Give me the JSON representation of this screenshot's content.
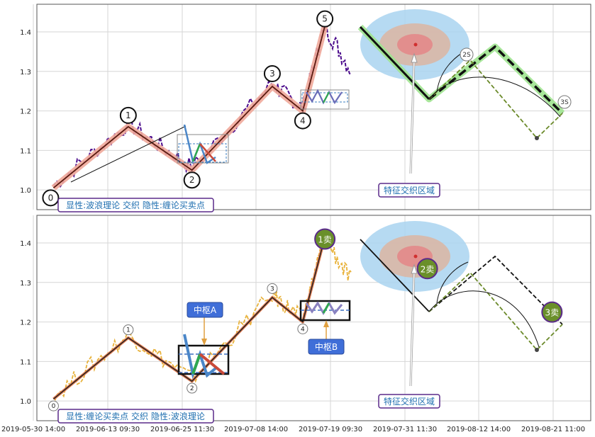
{
  "chart_data": [
    {
      "type": "line",
      "panel": "top",
      "x_tick_labels": [
        "2019-05-30 14:00",
        "2019-06-13 09:30",
        "2019-06-25 11:30",
        "2019-07-08 14:00",
        "2019-07-19 09:30",
        "2019-07-31 11:30",
        "2019-08-12 14:00",
        "2019-08-21 11:00"
      ],
      "y_ticks": [
        1.0,
        1.1,
        1.2,
        1.3,
        1.4
      ],
      "y_tick_labels": [
        "1.0",
        "1.1",
        "1.2",
        "1.3",
        "1.4"
      ],
      "ylim": [
        0.95,
        1.47
      ],
      "xlim": [
        0,
        100
      ],
      "grid": true,
      "wave_points": [
        {
          "x": 3.0,
          "y": 1.005,
          "label": "0"
        },
        {
          "x": 16.5,
          "y": 1.16,
          "label": "1"
        },
        {
          "x": 28.0,
          "y": 1.05,
          "label": "2"
        },
        {
          "x": 42.5,
          "y": 1.262,
          "label": "3"
        },
        {
          "x": 48.0,
          "y": 1.2,
          "label": "4"
        },
        {
          "x": 52.0,
          "y": 1.415,
          "label": "5"
        }
      ],
      "projection": {
        "line": [
          [
            61.5,
            1.22
          ],
          [
            75.5,
            1.365
          ],
          [
            87.5,
            1.19
          ]
        ],
        "labels": [
          "2S",
          "3S"
        ]
      },
      "annotation": "特征交织区域",
      "caption": "显性:波浪理论 交织 隐性:缠论买卖点"
    },
    {
      "type": "line",
      "panel": "bottom",
      "x_tick_labels": [
        "2019-05-30 14:00",
        "2019-06-13 09:30",
        "2019-06-25 11:30",
        "2019-07-08 14:00",
        "2019-07-19 09:30",
        "2019-07-31 11:30",
        "2019-08-12 14:00",
        "2019-08-21 11:00"
      ],
      "y_ticks": [
        1.0,
        1.1,
        1.2,
        1.3,
        1.4
      ],
      "y_tick_labels": [
        "1.0",
        "1.1",
        "1.2",
        "1.3",
        "1.4"
      ],
      "ylim": [
        0.95,
        1.47
      ],
      "xlim": [
        0,
        100
      ],
      "grid": true,
      "wave_points": [
        {
          "x": 3.0,
          "y": 1.005,
          "label": "0"
        },
        {
          "x": 16.5,
          "y": 1.16,
          "label": "1"
        },
        {
          "x": 28.0,
          "y": 1.05,
          "label": "2"
        },
        {
          "x": 42.5,
          "y": 1.262,
          "label": "3"
        },
        {
          "x": 48.0,
          "y": 1.2,
          "label": "4"
        },
        {
          "x": 52.0,
          "y": 1.415
        }
      ],
      "zhongshu": [
        {
          "label": "中枢A",
          "x0": 21.0,
          "x1": 29.0,
          "y0": 1.06,
          "y1": 1.135
        },
        {
          "label": "中枢B",
          "x0": 42.0,
          "x1": 49.0,
          "y0": 1.2,
          "y1": 1.25
        }
      ],
      "sell_points": [
        {
          "x": 52.0,
          "y": 1.41,
          "label": "1卖"
        },
        {
          "x": 70.5,
          "y": 1.335,
          "label": "2卖"
        },
        {
          "x": 93.0,
          "y": 1.225,
          "label": "3卖"
        }
      ],
      "annotation": "特征交织区域",
      "caption": "显性:缠论买卖点 交织 隐性:波浪理论"
    }
  ]
}
